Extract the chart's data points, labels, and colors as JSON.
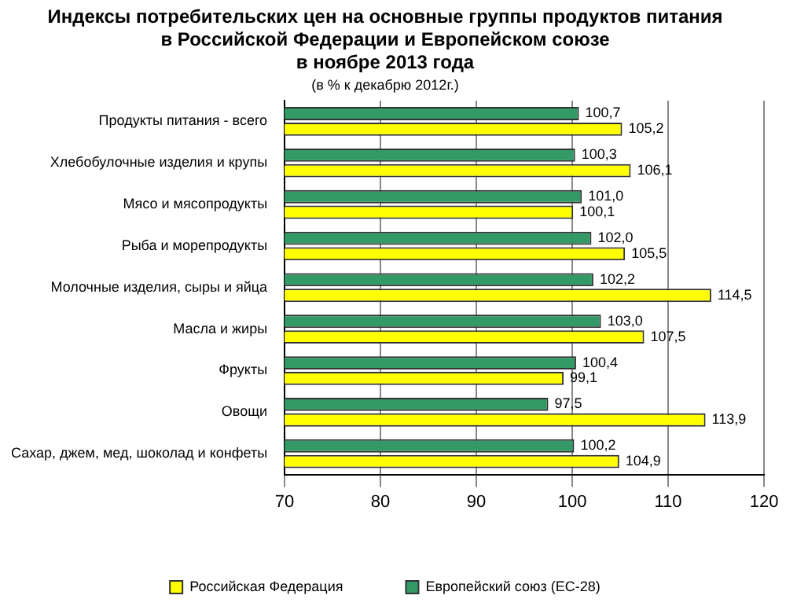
{
  "chart_data": {
    "type": "bar",
    "orientation": "horizontal",
    "title": "Индексы потребительских цен на основные группы продуктов питания\nв Российской Федерации и Европейском союзе\nв ноябре 2013 года",
    "subtitle": "(в % к декабрю 2012г.)",
    "categories": [
      "Продукты питания - всего",
      "Хлебобулочные изделия и крупы",
      "Мясо и мясопродукты",
      "Рыба и морепродукты",
      "Молочные изделия, сыры и яйца",
      "Масла и жиры",
      "Фрукты",
      "Овощи",
      "Сахар, джем, мед, шоколад и конфеты"
    ],
    "series": [
      {
        "name": "Европейский союз (ЕС-28)",
        "color": "#339966",
        "values": [
          100.7,
          100.3,
          101.0,
          102.0,
          102.2,
          103.0,
          100.4,
          97.5,
          100.2
        ],
        "value_labels": [
          "100,7",
          "100,3",
          "101,0",
          "102,0",
          "102,2",
          "103,0",
          "100,4",
          "97,5",
          "100,2"
        ]
      },
      {
        "name": "Российская Федерация",
        "color": "#ffff00",
        "values": [
          105.2,
          106.1,
          100.1,
          105.5,
          114.5,
          107.5,
          99.1,
          113.9,
          104.9
        ],
        "value_labels": [
          "105,2",
          "106,1",
          "100,1",
          "105,5",
          "114,5",
          "107,5",
          "99,1",
          "113,9",
          "104,9"
        ]
      }
    ],
    "xlim": [
      70,
      120
    ],
    "xticks": [
      70,
      80,
      90,
      100,
      110,
      120
    ],
    "grid": "x",
    "legend": "bottom"
  }
}
